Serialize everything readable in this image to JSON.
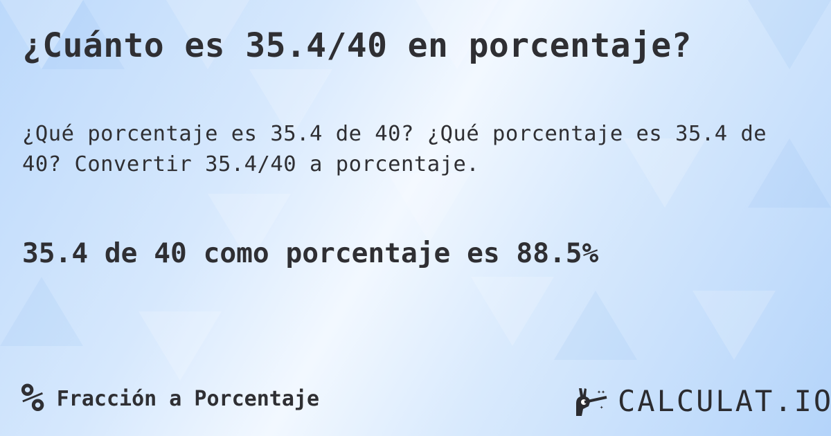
{
  "title": "¿Cuánto es 35.4/40 en porcentaje?",
  "description": "¿Qué porcentaje es 35.4 de 40? ¿Qué porcentaje es 35.4 de 40? Convertir 35.4/40 a porcentaje.",
  "result": "35.4 de 40 como porcentaje es 88.5%",
  "footer": {
    "category_icon": "percent-icon",
    "category_symbol": "%",
    "category_label": "Fracción a Porcentaje"
  },
  "logo": {
    "icon": "magic-hand-wand-icon",
    "text": "CALCULAT.IO"
  },
  "colors": {
    "text": "#2f2f33",
    "background": "#cfe4fc"
  }
}
